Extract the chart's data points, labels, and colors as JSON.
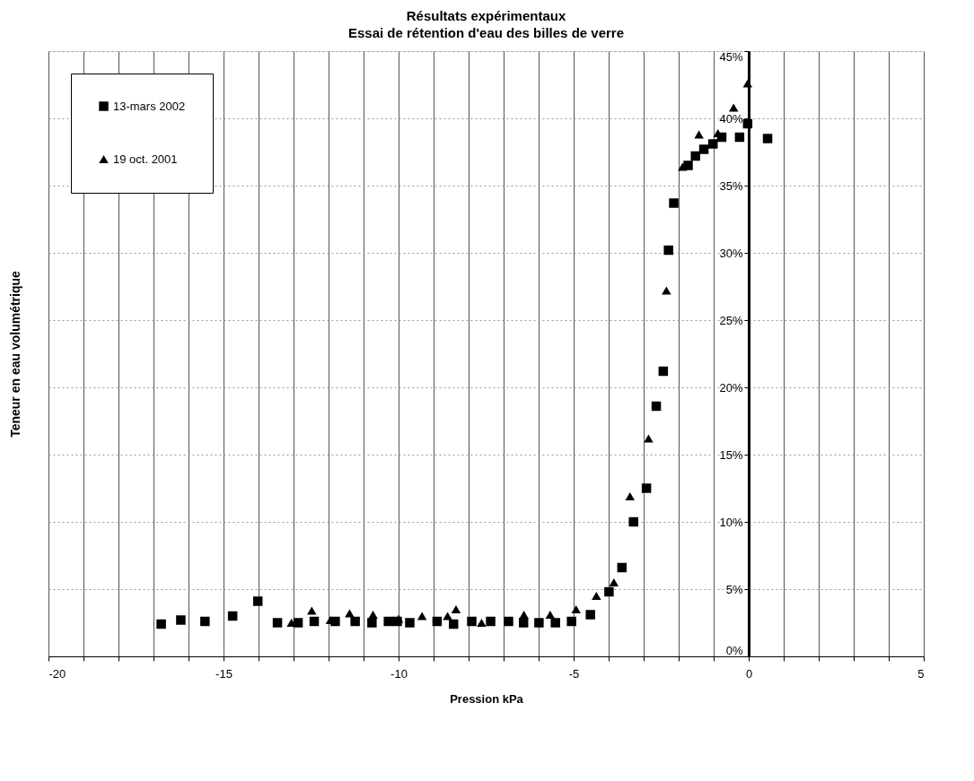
{
  "chart_data": {
    "type": "scatter",
    "title": "Résultats expérimentaux",
    "subtitle": "Essai de rétention d'eau des billes de verre",
    "xlabel": "Pression kPa",
    "ylabel": "Teneur en eau volumétrique",
    "xlim": [
      -20,
      5
    ],
    "ylim": [
      0,
      45
    ],
    "xticks": [
      -20,
      {
        "value": -19,
        "label": null
      },
      {
        "value": -18,
        "label": null
      },
      {
        "value": -17,
        "label": null
      },
      {
        "value": -16,
        "label": null
      },
      -15,
      {
        "value": -14,
        "label": null
      },
      {
        "value": -13,
        "label": null
      },
      {
        "value": -12,
        "label": null
      },
      {
        "value": -11,
        "label": null
      },
      -10,
      {
        "value": -9,
        "label": null
      },
      {
        "value": -8,
        "label": null
      },
      {
        "value": -7,
        "label": null
      },
      {
        "value": -6,
        "label": null
      },
      -5,
      {
        "value": -4,
        "label": null
      },
      {
        "value": -3,
        "label": null
      },
      {
        "value": -2,
        "label": null
      },
      {
        "value": -1,
        "label": null
      },
      0,
      {
        "value": 1,
        "label": null
      },
      {
        "value": 2,
        "label": null
      },
      {
        "value": 3,
        "label": null
      },
      {
        "value": 4,
        "label": null
      },
      5
    ],
    "yticks": [
      {
        "value": 0,
        "label": "0%"
      },
      {
        "value": 5,
        "label": "5%"
      },
      {
        "value": 10,
        "label": "10%"
      },
      {
        "value": 15,
        "label": "15%"
      },
      {
        "value": 20,
        "label": "20%"
      },
      {
        "value": 25,
        "label": "25%"
      },
      {
        "value": 30,
        "label": "30%"
      },
      {
        "value": 35,
        "label": "35%"
      },
      {
        "value": 40,
        "label": "40%"
      },
      {
        "value": 45,
        "label": "45%"
      }
    ],
    "grid": true,
    "legend": "top left",
    "series": [
      {
        "name": "13-mars 2002",
        "color": "#000000",
        "marker": "square",
        "x": [
          -16.78,
          -16.22,
          -15.53,
          -14.74,
          -14.02,
          -13.46,
          -12.87,
          -12.41,
          -11.81,
          -11.24,
          -10.76,
          -10.29,
          -10.04,
          -9.68,
          -8.9,
          -8.43,
          -7.91,
          -7.37,
          -6.86,
          -6.43,
          -5.99,
          -5.52,
          -5.06,
          -4.52,
          -3.99,
          -3.62,
          -3.29,
          -2.92,
          -2.64,
          -2.44,
          -2.29,
          -2.14,
          -1.73,
          -1.52,
          -1.28,
          -1.02,
          -0.77,
          -0.26,
          -0.03,
          0.54
        ],
        "values": [
          2.4,
          2.7,
          2.6,
          3.0,
          4.1,
          2.5,
          2.5,
          2.6,
          2.6,
          2.6,
          2.5,
          2.6,
          2.6,
          2.5,
          2.6,
          2.4,
          2.6,
          2.6,
          2.6,
          2.5,
          2.5,
          2.5,
          2.6,
          3.1,
          4.8,
          6.6,
          10.0,
          12.5,
          18.6,
          21.2,
          30.2,
          33.7,
          36.5,
          37.2,
          37.7,
          38.1,
          38.6,
          38.6,
          39.6,
          38.5
        ]
      },
      {
        "name": "19 oct. 2001",
        "color": "#000000",
        "marker": "triangle",
        "x": [
          -13.06,
          -12.48,
          -11.95,
          -11.4,
          -10.73,
          -10.0,
          -9.33,
          -8.6,
          -8.36,
          -7.63,
          -6.42,
          -5.67,
          -4.93,
          -4.35,
          -3.85,
          -3.39,
          -2.86,
          -2.35,
          -1.89,
          -1.42,
          -0.88,
          -0.43,
          -0.03
        ],
        "values": [
          2.5,
          3.4,
          2.7,
          3.2,
          3.1,
          2.8,
          3.0,
          3.0,
          3.5,
          2.5,
          3.1,
          3.1,
          3.5,
          4.5,
          5.5,
          11.9,
          16.2,
          27.2,
          36.4,
          38.8,
          38.9,
          40.8,
          42.6
        ]
      }
    ]
  }
}
